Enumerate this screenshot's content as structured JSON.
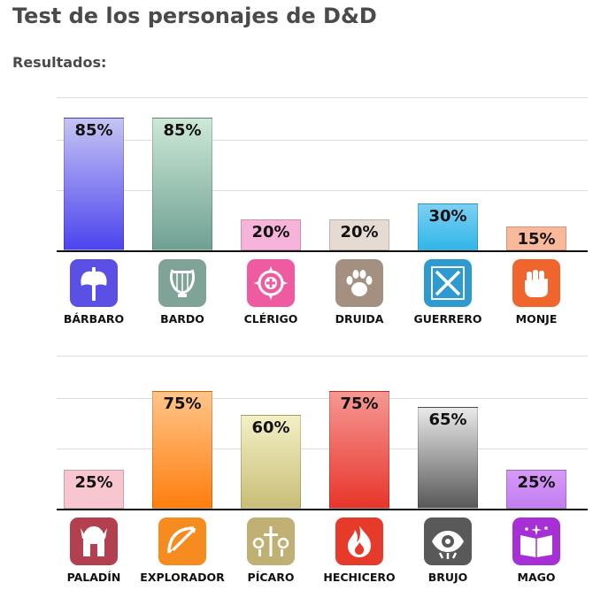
{
  "page": {
    "title": "Test de los personajes de D&D",
    "subtitle": "Resultados:"
  },
  "chart_data": [
    {
      "type": "bar",
      "title": "",
      "xlabel": "",
      "ylabel": "",
      "ylim": [
        0,
        100
      ],
      "grid": true,
      "categories": [
        "BÁRBARO",
        "BARDO",
        "CLÉRIGO",
        "DRUIDA",
        "GUERRERO",
        "MONJE"
      ],
      "values": [
        85,
        85,
        20,
        20,
        30,
        15
      ],
      "data_labels": [
        "85%",
        "85%",
        "20%",
        "20%",
        "30%",
        "15%"
      ],
      "colors": [
        [
          "#c6c4f3",
          "#4c44ee"
        ],
        [
          "#cde8d6",
          "#6fa193"
        ],
        [
          "#f6b4da",
          "#f6b4da"
        ],
        [
          "#e5dbd3",
          "#e5dbd3"
        ],
        [
          "#7cd0f2",
          "#31b6e8"
        ],
        [
          "#fbb99c",
          "#fbb99c"
        ]
      ],
      "icons": [
        "battle-axe-icon",
        "lyre-icon",
        "holy-symbol-icon",
        "paw-icon",
        "crossed-swords-icon",
        "fist-icon"
      ],
      "icon_colors": [
        "#5b50e6",
        "#7fa397",
        "#ef5ba1",
        "#a39081",
        "#2d9bd0",
        "#f0642d"
      ]
    },
    {
      "type": "bar",
      "title": "",
      "xlabel": "",
      "ylabel": "",
      "ylim": [
        0,
        100
      ],
      "grid": true,
      "categories": [
        "PALADÍN",
        "EXPLORADOR",
        "PÍCARO",
        "HECHICERO",
        "BRUJO",
        "MAGO"
      ],
      "values": [
        25,
        75,
        60,
        75,
        65,
        25
      ],
      "data_labels": [
        "25%",
        "75%",
        "60%",
        "75%",
        "65%",
        "25%"
      ],
      "colors": [
        [
          "#f7c6cf",
          "#f7c6cf"
        ],
        [
          "#ffc58a",
          "#ff7e0e"
        ],
        [
          "#f3f0c6",
          "#c9bd77"
        ],
        [
          "#f59893",
          "#e8352b"
        ],
        [
          "#e9e9e9",
          "#585858"
        ],
        [
          "#d59af6",
          "#c37ef0"
        ]
      ],
      "icons": [
        "helmet-icon",
        "bow-icon",
        "keys-dagger-icon",
        "flame-icon",
        "eye-icon",
        "spellbook-icon"
      ],
      "icon_colors": [
        "#b3404f",
        "#f68b1f",
        "#c0b074",
        "#e63a2a",
        "#595959",
        "#a630d6"
      ]
    }
  ]
}
